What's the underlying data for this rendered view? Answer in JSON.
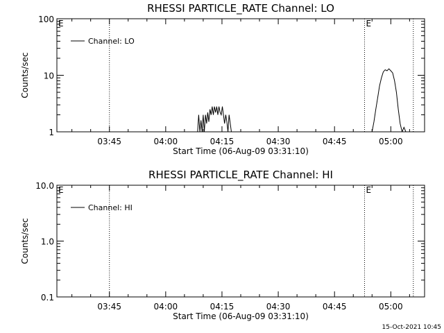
{
  "chart_data": [
    {
      "type": "line",
      "title": "RHESSI PARTICLE_RATE Channel: LO",
      "xlabel": "Start Time (06-Aug-09 03:31:10)",
      "ylabel": "Counts/sec",
      "yscale": "log",
      "ylim": [
        1,
        100
      ],
      "xlim": [
        "03:31",
        "05:09"
      ],
      "x_ticks": [
        "03:45",
        "04:00",
        "04:15",
        "04:30",
        "04:45",
        "05:00"
      ],
      "y_ticks": [
        "1",
        "10",
        "100"
      ],
      "markers": [
        {
          "time": "03:45",
          "label": ""
        },
        {
          "time": "04:53",
          "label": "E"
        },
        {
          "time": "05:06",
          "label": ""
        }
      ],
      "corner_label": "E",
      "legend_position": "top-left",
      "series": [
        {
          "name": "Channel: LO",
          "points": [
            [
              "04:08.5",
              1
            ],
            [
              "04:08.8",
              2.0
            ],
            [
              "04:09.1",
              1
            ],
            [
              "04:09.4",
              1.6
            ],
            [
              "04:09.7",
              1
            ],
            [
              "04:10.0",
              2.0
            ],
            [
              "04:10.3",
              1
            ],
            [
              "04:10.6",
              2.0
            ],
            [
              "04:10.9",
              1.4
            ],
            [
              "04:11.2",
              2.2
            ],
            [
              "04:11.5",
              1.5
            ],
            [
              "04:11.8",
              2.5
            ],
            [
              "04:12.1",
              2.0
            ],
            [
              "04:12.4",
              2.8
            ],
            [
              "04:12.7",
              2.0
            ],
            [
              "04:13.0",
              2.8
            ],
            [
              "04:13.3",
              2.2
            ],
            [
              "04:13.6",
              2.8
            ],
            [
              "04:13.9",
              2.0
            ],
            [
              "04:14.2",
              2.8
            ],
            [
              "04:14.5",
              2.2
            ],
            [
              "04:14.8",
              2.0
            ],
            [
              "04:15.1",
              2.8
            ],
            [
              "04:15.4",
              2.0
            ],
            [
              "04:15.7",
              1.4
            ],
            [
              "04:16.0",
              2.0
            ],
            [
              "04:16.3",
              1.5
            ],
            [
              "04:16.6",
              1
            ],
            [
              "04:16.9",
              2.0
            ],
            [
              "04:17.2",
              1.4
            ],
            [
              "04:17.5",
              1
            ],
            [
              "04:18.0",
              1
            ],
            [
              "04:55.0",
              1
            ],
            [
              "04:55.5",
              1.5
            ],
            [
              "04:56.0",
              2.5
            ],
            [
              "04:56.5",
              4.0
            ],
            [
              "04:57.0",
              6.5
            ],
            [
              "04:57.5",
              9.0
            ],
            [
              "04:58.0",
              11.5
            ],
            [
              "04:58.5",
              12.5
            ],
            [
              "04:59.0",
              12.0
            ],
            [
              "04:59.5",
              13.0
            ],
            [
              "05:00.0",
              12.0
            ],
            [
              "05:00.5",
              11.0
            ],
            [
              "05:01.0",
              8.0
            ],
            [
              "05:01.5",
              5.0
            ],
            [
              "05:02.0",
              2.5
            ],
            [
              "05:02.5",
              1.4
            ],
            [
              "05:03.0",
              1
            ],
            [
              "05:03.5",
              1.2
            ],
            [
              "05:04.0",
              1
            ]
          ]
        }
      ]
    },
    {
      "type": "line",
      "title": "RHESSI PARTICLE_RATE Channel: HI",
      "xlabel": "Start Time (06-Aug-09 03:31:10)",
      "ylabel": "Counts/sec",
      "yscale": "log",
      "ylim": [
        0.1,
        10
      ],
      "xlim": [
        "03:31",
        "05:09"
      ],
      "x_ticks": [
        "03:45",
        "04:00",
        "04:15",
        "04:30",
        "04:45",
        "05:00"
      ],
      "y_ticks": [
        "0.1",
        "1.0",
        "10.0"
      ],
      "markers": [
        {
          "time": "03:45",
          "label": ""
        },
        {
          "time": "04:53",
          "label": "E"
        },
        {
          "time": "05:06",
          "label": ""
        }
      ],
      "corner_label": "E",
      "legend_position": "top-left",
      "series": [
        {
          "name": "Channel: HI",
          "points": []
        }
      ]
    }
  ],
  "footer": {
    "timestamp": "15-Oct-2021 10:45"
  }
}
